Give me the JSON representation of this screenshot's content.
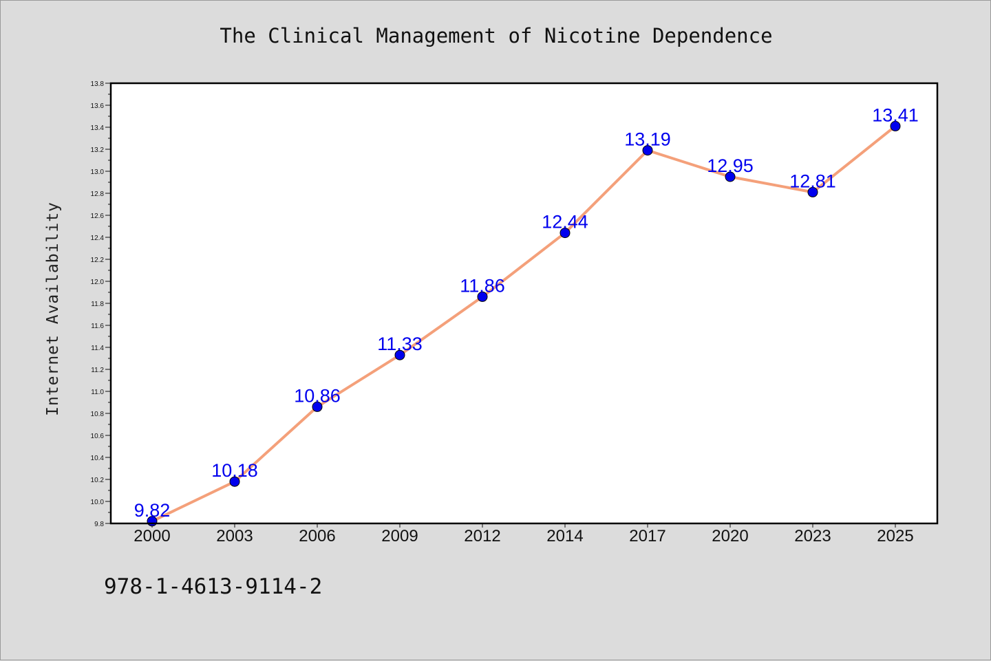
{
  "chart_data": {
    "type": "line",
    "title": "The Clinical Management of Nicotine Dependence",
    "ylabel": "Internet Availability",
    "xlabel": "",
    "categories": [
      "2000",
      "2003",
      "2006",
      "2009",
      "2012",
      "2014",
      "2017",
      "2020",
      "2023",
      "2025"
    ],
    "series": [
      {
        "values": [
          9.82,
          10.18,
          10.86,
          11.33,
          11.86,
          12.44,
          13.19,
          12.95,
          12.81,
          13.41
        ]
      }
    ],
    "data_labels": [
      "9.82",
      "10.18",
      "10.86",
      "11.33",
      "11.86",
      "12.44",
      "13.19",
      "12.95",
      "12.81",
      "13.41"
    ],
    "ylim": [
      9.8,
      13.8
    ],
    "yticks": [
      "9.8",
      "10.0",
      "10.2",
      "10.4",
      "10.6",
      "10.8",
      "11.0",
      "11.2",
      "11.4",
      "11.6",
      "11.8",
      "12.0",
      "12.2",
      "12.4",
      "12.6",
      "12.8",
      "13.0",
      "13.2",
      "13.4",
      "13.6",
      "13.8"
    ],
    "grid": false,
    "line_color": "#f4a07a",
    "marker_color": "#0000ee",
    "label_color": "#0000ee"
  },
  "footer": {
    "isbn": "978-1-4613-9114-2"
  }
}
